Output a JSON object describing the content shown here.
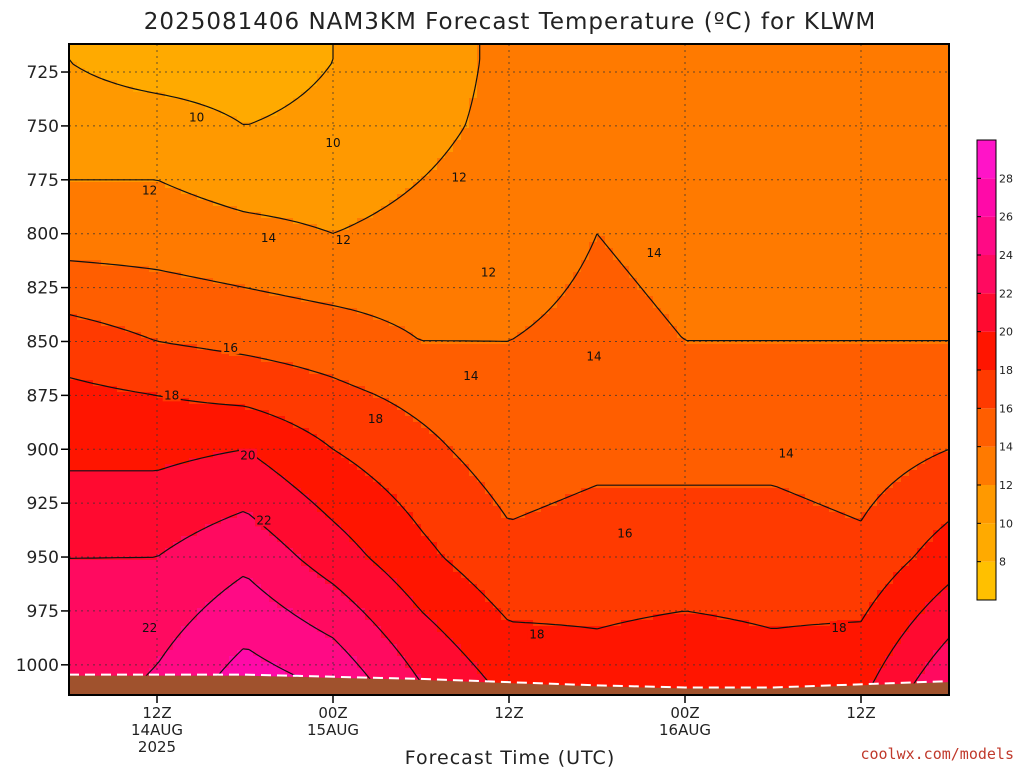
{
  "chart_data": {
    "type": "heatmap",
    "title": "2025081406 NAM3KM Forecast Temperature (ºC) for KLWM",
    "xlabel": "Forecast Time (UTC)",
    "ylabel": "",
    "credit": "coolwx.com/models",
    "y_axis": {
      "unit": "hPa",
      "inverted": true,
      "ylim": [
        1014,
        712
      ],
      "ticks": [
        725,
        750,
        775,
        800,
        825,
        850,
        875,
        900,
        925,
        950,
        975,
        1000
      ]
    },
    "x_axis": {
      "unit": "hours_since_2025-08-14T00Z_label_positions",
      "xlim": [
        6,
        66
      ],
      "ticks": [
        {
          "hour": 12,
          "lines": [
            "12Z",
            "14AUG",
            "2025"
          ]
        },
        {
          "hour": 24,
          "lines": [
            "00Z",
            "15AUG"
          ]
        },
        {
          "hour": 36,
          "lines": [
            "12Z"
          ]
        },
        {
          "hour": 48,
          "lines": [
            "00Z",
            "16AUG"
          ]
        },
        {
          "hour": 60,
          "lines": [
            "12Z"
          ]
        }
      ]
    },
    "grid": true,
    "colorbar": {
      "min": 6,
      "max": 30,
      "step": 2,
      "labels": [
        8,
        10,
        12,
        14,
        16,
        18,
        20,
        22,
        24,
        26,
        28
      ],
      "colors": [
        {
          "from": 6,
          "to": 8,
          "color": "#ffc000"
        },
        {
          "from": 8,
          "to": 10,
          "color": "#ffaa00"
        },
        {
          "from": 10,
          "to": 12,
          "color": "#ff9900"
        },
        {
          "from": 12,
          "to": 14,
          "color": "#ff7a00"
        },
        {
          "from": 14,
          "to": 16,
          "color": "#ff5e00"
        },
        {
          "from": 16,
          "to": 18,
          "color": "#ff3a00"
        },
        {
          "from": 18,
          "to": 20,
          "color": "#ff1500"
        },
        {
          "from": 20,
          "to": 22,
          "color": "#ff0a30"
        },
        {
          "from": 22,
          "to": 24,
          "color": "#ff0a60"
        },
        {
          "from": 24,
          "to": 26,
          "color": "#ff0a85"
        },
        {
          "from": 26,
          "to": 28,
          "color": "#ff0aa8"
        },
        {
          "from": 28,
          "to": 30,
          "color": "#ff14c8"
        }
      ]
    },
    "terrain_color": "#a0522d",
    "surface_pressure": [
      {
        "hour": 6,
        "p": 1005
      },
      {
        "hour": 18,
        "p": 1005
      },
      {
        "hour": 30,
        "p": 1007
      },
      {
        "hour": 42,
        "p": 1010
      },
      {
        "hour": 48,
        "p": 1011
      },
      {
        "hour": 54,
        "p": 1011
      },
      {
        "hour": 66,
        "p": 1008
      }
    ],
    "temperature_profiles": [
      {
        "hour": 6,
        "levels": [
          [
            720,
            10
          ],
          [
            750,
            11
          ],
          [
            800,
            13
          ],
          [
            850,
            17
          ],
          [
            875,
            18.5
          ],
          [
            900,
            19.5
          ],
          [
            950,
            22
          ],
          [
            1000,
            22.5
          ]
        ]
      },
      {
        "hour": 12,
        "levels": [
          [
            720,
            9
          ],
          [
            750,
            11
          ],
          [
            800,
            13
          ],
          [
            850,
            16
          ],
          [
            875,
            18
          ],
          [
            900,
            19.5
          ],
          [
            950,
            22
          ],
          [
            1000,
            24
          ]
        ]
      },
      {
        "hour": 18,
        "levels": [
          [
            720,
            9
          ],
          [
            750,
            10
          ],
          [
            800,
            12.5
          ],
          [
            850,
            15.5
          ],
          [
            875,
            17.5
          ],
          [
            900,
            20
          ],
          [
            950,
            23.5
          ],
          [
            1000,
            26.5
          ]
        ]
      },
      {
        "hour": 24,
        "levels": [
          [
            720,
            10
          ],
          [
            750,
            10.5
          ],
          [
            800,
            12
          ],
          [
            850,
            15
          ],
          [
            875,
            16.5
          ],
          [
            900,
            18
          ],
          [
            950,
            21
          ],
          [
            1000,
            25
          ]
        ]
      },
      {
        "hour": 30,
        "levels": [
          [
            720,
            11
          ],
          [
            750,
            11.5
          ],
          [
            800,
            12.5
          ],
          [
            850,
            14
          ],
          [
            875,
            15.5
          ],
          [
            900,
            16.5
          ],
          [
            950,
            18.5
          ],
          [
            1000,
            21.5
          ]
        ]
      },
      {
        "hour": 36,
        "levels": [
          [
            720,
            12.5
          ],
          [
            750,
            12.5
          ],
          [
            800,
            13
          ],
          [
            850,
            14
          ],
          [
            875,
            14.5
          ],
          [
            900,
            15
          ],
          [
            950,
            16.5
          ],
          [
            1000,
            19
          ]
        ]
      },
      {
        "hour": 42,
        "levels": [
          [
            720,
            12.5
          ],
          [
            750,
            13
          ],
          [
            800,
            14
          ],
          [
            850,
            14.5
          ],
          [
            875,
            15
          ],
          [
            900,
            15.5
          ],
          [
            950,
            17
          ],
          [
            1000,
            18.5
          ]
        ]
      },
      {
        "hour": 48,
        "levels": [
          [
            720,
            12.5
          ],
          [
            750,
            12.5
          ],
          [
            800,
            13.5
          ],
          [
            850,
            14
          ],
          [
            875,
            14.5
          ],
          [
            900,
            15.5
          ],
          [
            950,
            17
          ],
          [
            1000,
            19
          ]
        ]
      },
      {
        "hour": 54,
        "levels": [
          [
            720,
            13
          ],
          [
            750,
            13
          ],
          [
            800,
            13.5
          ],
          [
            850,
            14
          ],
          [
            875,
            14.5
          ],
          [
            900,
            15.5
          ],
          [
            950,
            17
          ],
          [
            1000,
            18.5
          ]
        ]
      },
      {
        "hour": 60,
        "levels": [
          [
            720,
            12.5
          ],
          [
            750,
            13
          ],
          [
            800,
            13.5
          ],
          [
            850,
            14
          ],
          [
            875,
            14.5
          ],
          [
            900,
            15
          ],
          [
            950,
            16.5
          ],
          [
            1000,
            19
          ]
        ]
      },
      {
        "hour": 66,
        "levels": [
          [
            720,
            12
          ],
          [
            750,
            12.5
          ],
          [
            800,
            13.5
          ],
          [
            850,
            14
          ],
          [
            875,
            14.5
          ],
          [
            900,
            16
          ],
          [
            950,
            19
          ],
          [
            1000,
            23
          ]
        ]
      }
    ],
    "contour_labels": [
      {
        "value": "10",
        "hour": 14.7,
        "p": 746
      },
      {
        "value": "10",
        "hour": 24.0,
        "p": 758
      },
      {
        "value": "12",
        "hour": 11.5,
        "p": 780
      },
      {
        "value": "12",
        "hour": 24.7,
        "p": 803
      },
      {
        "value": "12",
        "hour": 32.6,
        "p": 774
      },
      {
        "value": "12",
        "hour": 34.6,
        "p": 818
      },
      {
        "value": "14",
        "hour": 19.6,
        "p": 802
      },
      {
        "value": "14",
        "hour": 45.9,
        "p": 809
      },
      {
        "value": "14",
        "hour": 33.4,
        "p": 866
      },
      {
        "value": "14",
        "hour": 41.8,
        "p": 857
      },
      {
        "value": "14",
        "hour": 54.9,
        "p": 902
      },
      {
        "value": "16",
        "hour": 17.0,
        "p": 853
      },
      {
        "value": "16",
        "hour": 43.9,
        "p": 939
      },
      {
        "value": "18",
        "hour": 13.0,
        "p": 875
      },
      {
        "value": "18",
        "hour": 26.9,
        "p": 886
      },
      {
        "value": "18",
        "hour": 37.9,
        "p": 986
      },
      {
        "value": "18",
        "hour": 58.5,
        "p": 983
      },
      {
        "value": "20",
        "hour": 18.2,
        "p": 903
      },
      {
        "value": "22",
        "hour": 19.3,
        "p": 933
      },
      {
        "value": "22",
        "hour": 11.5,
        "p": 983
      }
    ]
  }
}
